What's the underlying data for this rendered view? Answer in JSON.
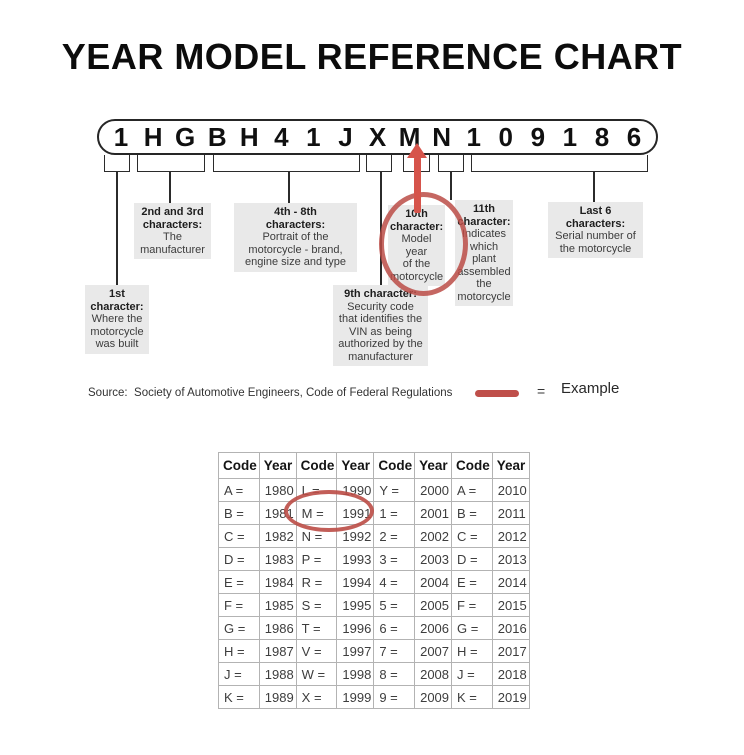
{
  "title": "YEAR MODEL REFERENCE CHART",
  "vin": {
    "characters": [
      "1",
      "H",
      "G",
      "B",
      "H",
      "4",
      "1",
      "J",
      "X",
      "M",
      "N",
      "1",
      "0",
      "9",
      "1",
      "8",
      "6"
    ]
  },
  "callouts": {
    "first": {
      "title": "1st\ncharacter:",
      "body": "Where the\nmotorcycle\nwas built"
    },
    "second_third": {
      "title": "2nd and 3rd\ncharacters:",
      "body": "The\nmanufacturer"
    },
    "fourth_eighth": {
      "title": "4th - 8th\ncharacters:",
      "body": "Portrait of the\nmotorcycle - brand,\nengine size and type"
    },
    "ninth": {
      "title": "9th character:",
      "body": "Security code\nthat identifies the\nVIN as being\nauthorized by the\nmanufacturer"
    },
    "tenth": {
      "title": "10th\ncharacter:",
      "body": "Model year\nof the\nmotorcycle"
    },
    "eleventh": {
      "title": "11th\ncharacter:",
      "body": "Indicates\nwhich plant\nassembled\nthe\nmotorcycle"
    },
    "last_six": {
      "title": "Last 6\ncharacters:",
      "body": "Serial number of\nthe motorcycle"
    }
  },
  "source_line": "Source:  Society of Automotive Engineers, Code of Federal Regulations",
  "legend": {
    "equals": "=",
    "label": "Example"
  },
  "colors": {
    "accent_red": "#bf4f4a",
    "arrow_red": "#d6544b",
    "box_gray": "#e9e9e9"
  },
  "table": {
    "columns": [
      "Code",
      "Year",
      "Code",
      "Year",
      "Code",
      "Year",
      "Code",
      "Year"
    ],
    "rows": [
      [
        "A =",
        "1980",
        "L =",
        "1990",
        "Y =",
        "2000",
        "A =",
        "2010"
      ],
      [
        "B =",
        "1981",
        "M =",
        "1991",
        "1 =",
        "2001",
        "B =",
        "2011"
      ],
      [
        "C =",
        "1982",
        "N =",
        "1992",
        "2 =",
        "2002",
        "C =",
        "2012"
      ],
      [
        "D =",
        "1983",
        "P =",
        "1993",
        "3 =",
        "2003",
        "D =",
        "2013"
      ],
      [
        "E =",
        "1984",
        "R =",
        "1994",
        "4 =",
        "2004",
        "E =",
        "2014"
      ],
      [
        "F =",
        "1985",
        "S =",
        "1995",
        "5 =",
        "2005",
        "F =",
        "2015"
      ],
      [
        "G =",
        "1986",
        "T =",
        "1996",
        "6 =",
        "2006",
        "G =",
        "2016"
      ],
      [
        "H =",
        "1987",
        "V =",
        "1997",
        "7 =",
        "2007",
        "H =",
        "2017"
      ],
      [
        "J =",
        "1988",
        "W =",
        "1998",
        "8 =",
        "2008",
        "J =",
        "2018"
      ],
      [
        "K =",
        "1989",
        "X =",
        "1999",
        "9 =",
        "2009",
        "K =",
        "2019"
      ]
    ]
  }
}
